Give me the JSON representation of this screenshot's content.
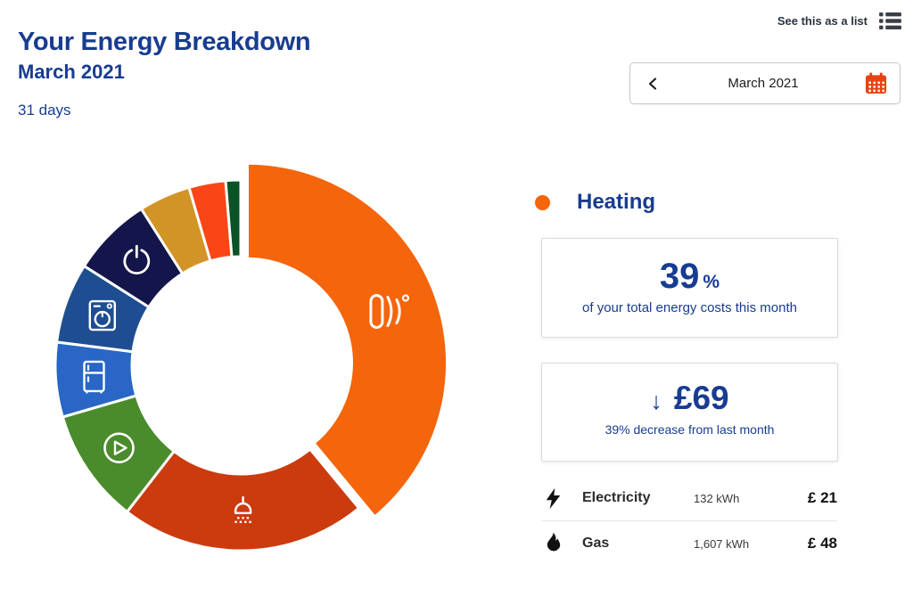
{
  "page": {
    "title": "Your Energy Breakdown",
    "month": "March 2021",
    "days": "31 days"
  },
  "toolbar": {
    "list_toggle_label": "See this as a list"
  },
  "date_picker": {
    "value": "March 2021"
  },
  "chart_data": {
    "type": "donut",
    "title": "Your Energy Breakdown",
    "value_unit": "percent of total energy costs",
    "selected_segment": "Heating",
    "segments": [
      {
        "name": "heating",
        "label": "Heating",
        "icon": "radiator-icon",
        "percent": 39,
        "color": "#F4650C",
        "selected": true
      },
      {
        "name": "hot-water",
        "icon": "shower-icon",
        "percent": 21.5,
        "color": "#CB3B0E"
      },
      {
        "name": "entertainment",
        "icon": "play-icon",
        "percent": 10,
        "color": "#4A8B2C"
      },
      {
        "name": "refrigeration",
        "icon": "fridge-icon",
        "percent": 6.5,
        "color": "#2966C6"
      },
      {
        "name": "washing",
        "icon": "washing-machine-icon",
        "percent": 7,
        "color": "#1E4E91"
      },
      {
        "name": "always-on",
        "icon": "power-icon",
        "percent": 7,
        "color": "#14154A"
      },
      {
        "name": "amber-segment",
        "icon": null,
        "percent": 4.5,
        "color": "#D29327"
      },
      {
        "name": "red-segment",
        "icon": null,
        "percent": 3.2,
        "color": "#FA4616"
      },
      {
        "name": "dark-green-segment",
        "icon": null,
        "percent": 1.3,
        "color": "#0B5226"
      }
    ]
  },
  "detail": {
    "legend": {
      "label": "Heating",
      "color": "#F4650C"
    },
    "percent_card": {
      "value": "39",
      "unit": "%",
      "caption": "of your total energy costs this month"
    },
    "cost_card": {
      "arrow": "↓",
      "value": "£69",
      "caption": "39% decrease from last month"
    },
    "fuels": [
      {
        "icon": "lightning-icon",
        "label": "Electricity",
        "usage": "132 kWh",
        "cost": "£ 21"
      },
      {
        "icon": "flame-icon",
        "label": "Gas",
        "usage": "1,607 kWh",
        "cost": "£ 48"
      }
    ]
  }
}
